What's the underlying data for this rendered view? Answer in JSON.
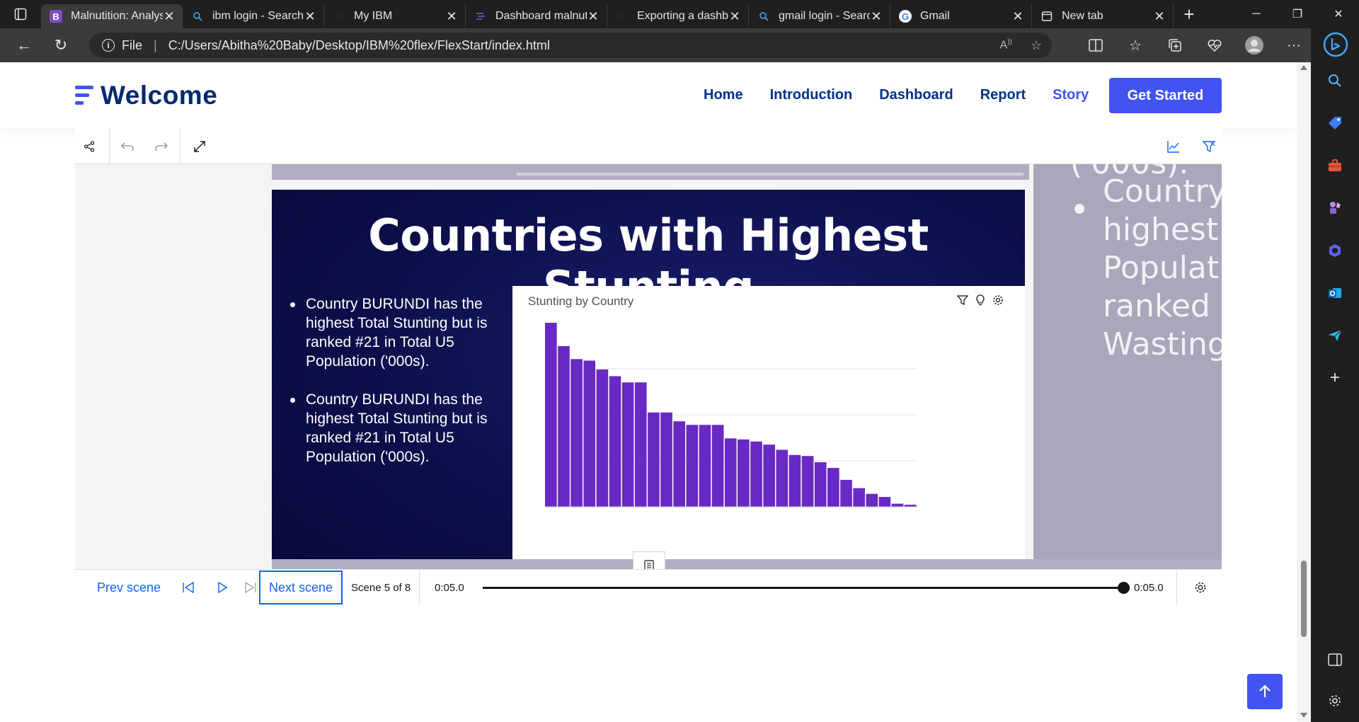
{
  "browser": {
    "tabs": [
      {
        "title": "Malnutition: Analysis",
        "favicon": "B",
        "active": true
      },
      {
        "title": "ibm login - Search",
        "favicon": "search"
      },
      {
        "title": "My IBM",
        "favicon": "ibm"
      },
      {
        "title": "Dashboard malnutrition",
        "favicon": "doc"
      },
      {
        "title": "Exporting a dashboard",
        "favicon": "ibm"
      },
      {
        "title": "gmail login - Search",
        "favicon": "search"
      },
      {
        "title": "Gmail",
        "favicon": "google"
      },
      {
        "title": "New tab",
        "favicon": "newtab"
      }
    ],
    "address": {
      "scheme_label": "File",
      "url": "C:/Users/Abitha%20Baby/Desktop/IBM%20flex/FlexStart/index.html"
    }
  },
  "site": {
    "brand": "Welcome",
    "nav": [
      {
        "label": "Home"
      },
      {
        "label": "Introduction"
      },
      {
        "label": "Dashboard"
      },
      {
        "label": "Report"
      },
      {
        "label": "Story",
        "current": true
      }
    ],
    "cta": "Get Started",
    "colors": {
      "primary": "#4154f1",
      "navy": "#012970",
      "bar": "#6929c4"
    }
  },
  "story": {
    "slide": {
      "title": "Countries with Highest Stunting",
      "bullets": [
        "Country BURUNDI has the highest Total Stunting but is ranked #21 in Total U5 Population ('000s).",
        "Country BURUNDI has the highest Total Stunting but is ranked #21 in Total U5 Population ('000s)."
      ]
    },
    "next_slide_peek": {
      "top_fragment": "('000s).",
      "lines": [
        "Country",
        "highest T",
        "Populatio",
        "ranked #",
        "Wasting."
      ]
    },
    "player": {
      "prev_label": "Prev scene",
      "next_label": "Next scene",
      "scene_text": "Scene 5 of 8",
      "time_start": "0:05.0",
      "time_end": "0:05.0"
    }
  },
  "chart_data": {
    "type": "bar",
    "title": "Stunting by Country",
    "xlabel": "",
    "ylabel": "",
    "ylim": [
      0,
      3.55
    ],
    "grid": true,
    "legend": "none",
    "values": [
      3.55,
      3.1,
      2.85,
      2.82,
      2.65,
      2.52,
      2.4,
      2.4,
      1.82,
      1.82,
      1.65,
      1.58,
      1.58,
      1.58,
      1.32,
      1.3,
      1.26,
      1.2,
      1.1,
      1.0,
      0.98,
      0.86,
      0.75,
      0.52,
      0.36,
      0.25,
      0.19,
      0.06,
      0.04
    ]
  }
}
